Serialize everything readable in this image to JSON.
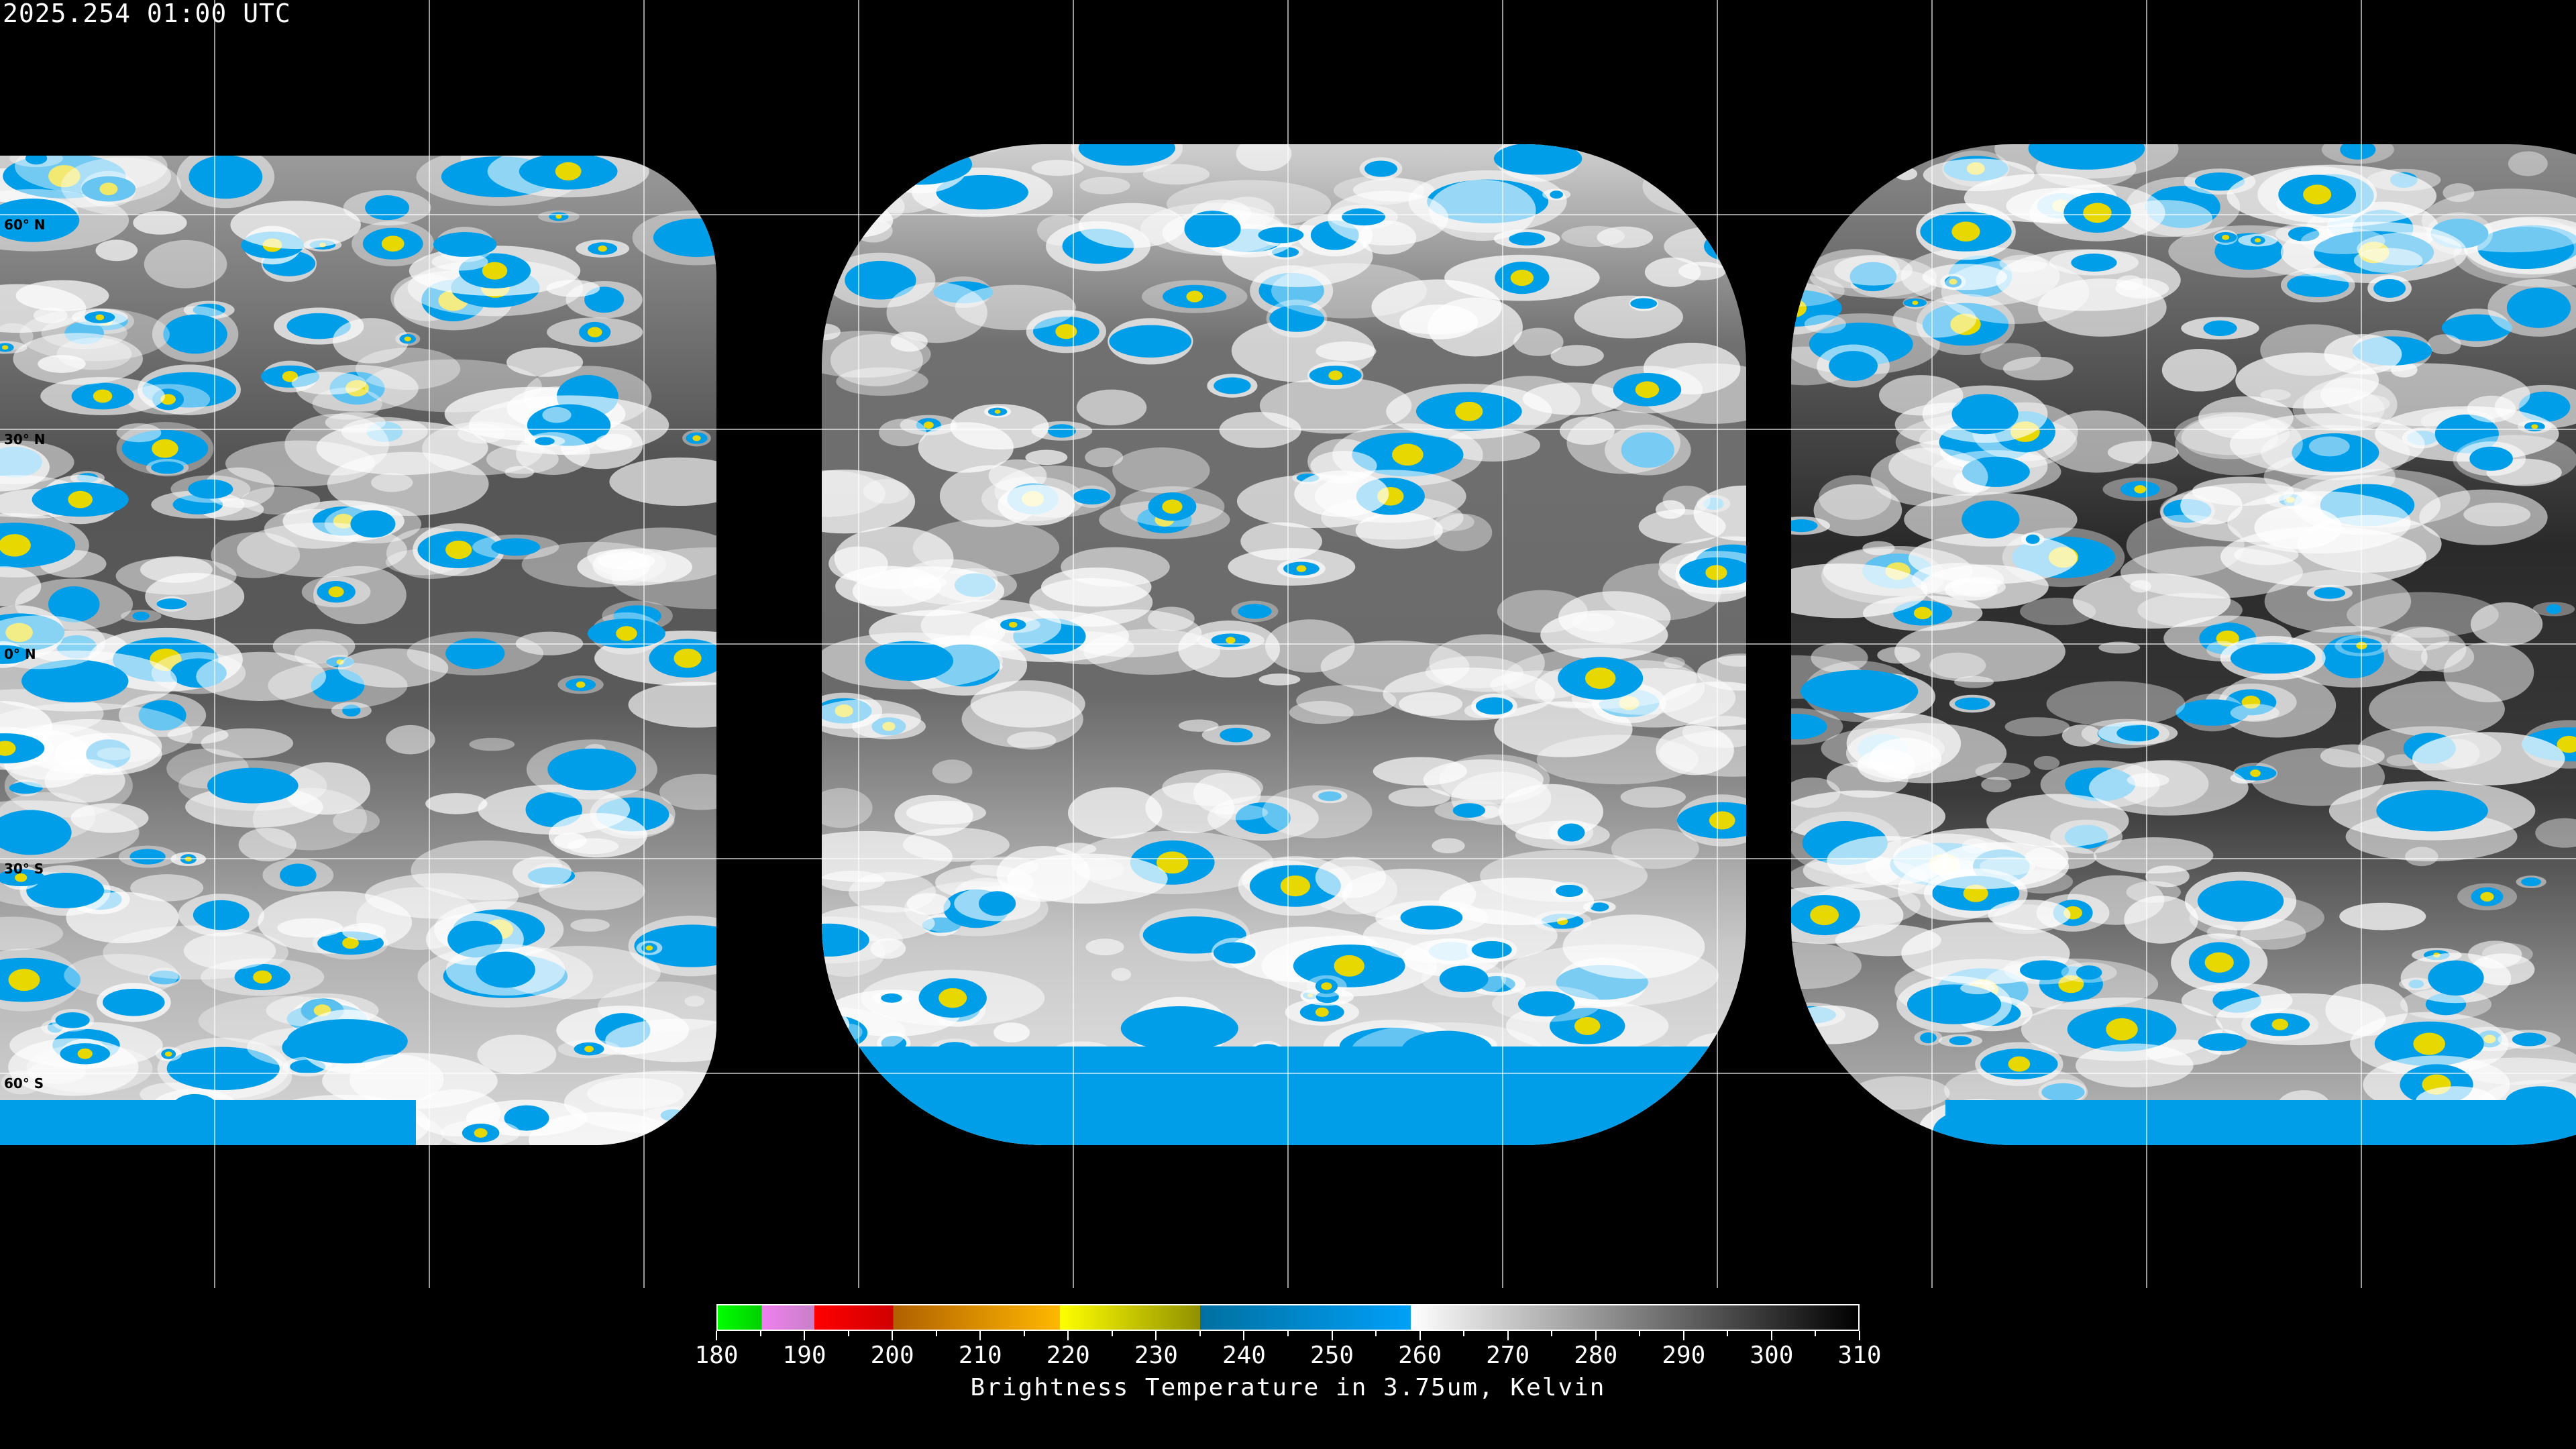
{
  "title": "2025.254 01:00 UTC",
  "map": {
    "projection": "equirectangular",
    "grid_spacing_deg": 30,
    "lat_labels": [
      "60° N",
      "30° N",
      "0° N",
      "30° S",
      "60° S"
    ],
    "background": "#000000",
    "grid_color": "#ffffff",
    "coastline_color": "#ffffff"
  },
  "colorbar": {
    "title": "Brightness Temperature in 3.75um, Kelvin",
    "min": 180,
    "max": 310,
    "tick_labels": [
      "180",
      "190",
      "200",
      "210",
      "220",
      "230",
      "240",
      "250",
      "260",
      "270",
      "280",
      "290",
      "300",
      "310"
    ],
    "segments": [
      {
        "from": 180,
        "to": 185,
        "start": "#00ff00",
        "end": "#00d000"
      },
      {
        "from": 185,
        "to": 191,
        "start": "#f080f0",
        "end": "#c880c8"
      },
      {
        "from": 191,
        "to": 200,
        "start": "#ff0000",
        "end": "#d00000"
      },
      {
        "from": 200,
        "to": 219,
        "start": "#b06000",
        "end": "#ffb800"
      },
      {
        "from": 219,
        "to": 235,
        "start": "#ffff00",
        "end": "#909000"
      },
      {
        "from": 235,
        "to": 259,
        "start": "#0070a0",
        "end": "#00a0f8"
      },
      {
        "from": 259,
        "to": 310,
        "start": "#ffffff",
        "end": "#000000"
      }
    ]
  }
}
